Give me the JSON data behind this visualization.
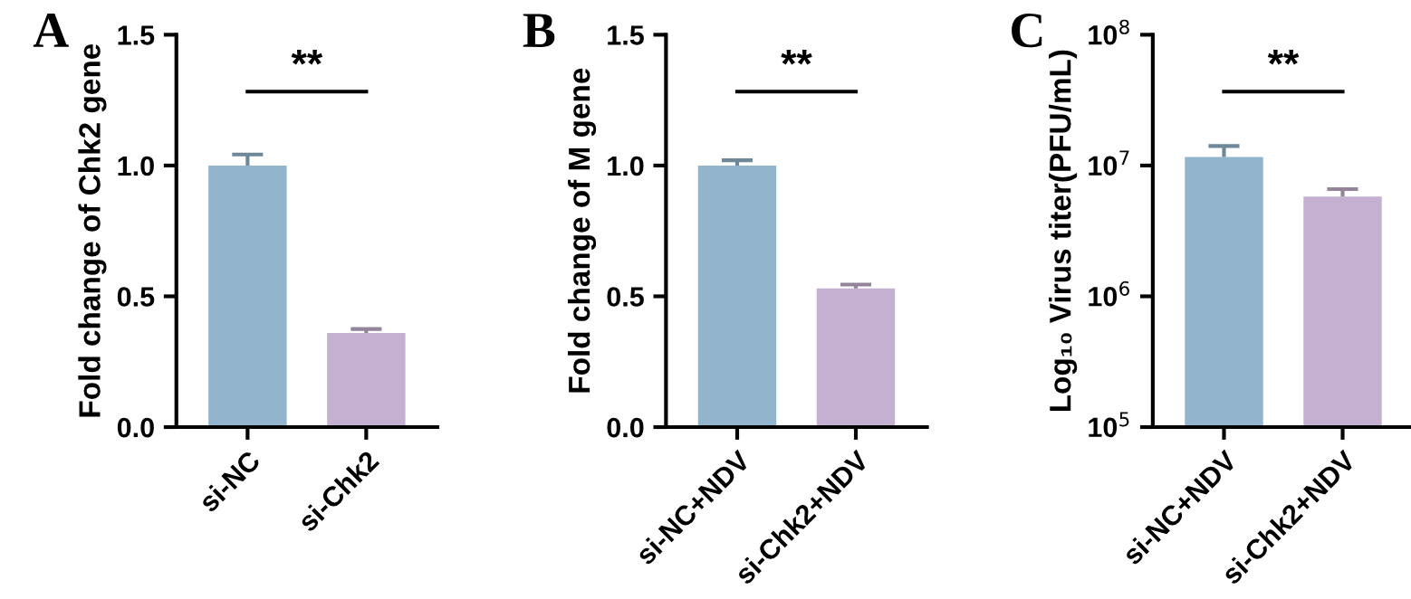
{
  "chart_data": [
    {
      "type": "bar",
      "title": "A",
      "ylabel": "Fold change of Chk2 gene",
      "categories": [
        "si-NC",
        "si-Chk2"
      ],
      "values": [
        1.0,
        0.36
      ],
      "errors": [
        0.042,
        0.015
      ],
      "colors": [
        "#92b4cc",
        "#c4b0d0"
      ],
      "ylim": [
        0,
        1.5
      ],
      "yticks": [
        {
          "value": 0,
          "label": "0.0"
        },
        {
          "value": 0.5,
          "label": "0.5"
        },
        {
          "value": 1,
          "label": "1.0"
        },
        {
          "value": 1.5,
          "label": "1.5"
        }
      ],
      "annotations": [
        "**"
      ],
      "grid": false,
      "legend": false
    },
    {
      "type": "bar",
      "title": "B",
      "ylabel": "Fold change of M gene",
      "categories": [
        "si-NC+NDV",
        "si-Chk2+NDV"
      ],
      "values": [
        1.0,
        0.53
      ],
      "errors": [
        0.02,
        0.015
      ],
      "colors": [
        "#92b4cc",
        "#c4b0d0"
      ],
      "ylim": [
        0,
        1.5
      ],
      "yticks": [
        {
          "value": 0,
          "label": "0.0"
        },
        {
          "value": 0.5,
          "label": "0.5"
        },
        {
          "value": 1,
          "label": "1.0"
        },
        {
          "value": 1.5,
          "label": "1.5"
        }
      ],
      "annotations": [
        "**"
      ],
      "grid": false,
      "legend": false
    },
    {
      "type": "bar",
      "title": "C",
      "ylabel": "Log₁₀ Virus titer(PFU/mL)",
      "categories": [
        "si-NC+NDV",
        "si-Chk2+NDV"
      ],
      "values": [
        11600000,
        5800000
      ],
      "errors": [
        2500000,
        800000
      ],
      "colors": [
        "#92b4cc",
        "#c4b0d0"
      ],
      "log": true,
      "ylim": [
        100000,
        100000000
      ],
      "yticks": [
        {
          "value": 100000,
          "label": "10$^{5}$"
        },
        {
          "value": 1000000,
          "label": "10$^{6}$"
        },
        {
          "value": 10000000,
          "label": "10$^{7}$"
        },
        {
          "value": 100000000,
          "label": "10$^{8}$"
        }
      ],
      "annotations": [
        "**"
      ],
      "grid": false,
      "legend": false
    }
  ]
}
